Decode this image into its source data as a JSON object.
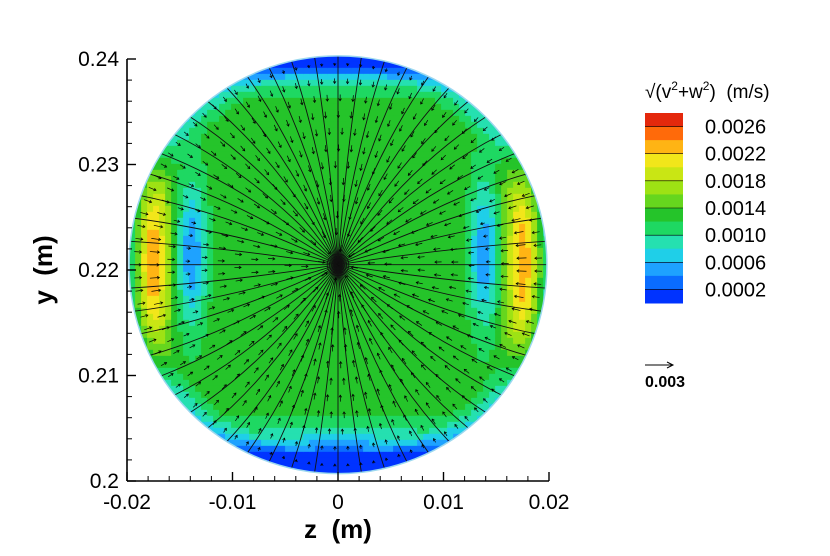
{
  "chart_data": {
    "type": "contour",
    "title": "",
    "xlabel": "z  (m)",
    "ylabel": "y  (m)",
    "xlim": [
      -0.02,
      0.02
    ],
    "ylim": [
      0.2,
      0.24
    ],
    "x_ticks": [
      "-0.02",
      "-0.01",
      "0",
      "0.01",
      "0.02"
    ],
    "y_ticks": [
      "0.2",
      "0.21",
      "0.22",
      "0.23",
      "0.24"
    ],
    "x_tick_values": [
      -0.02,
      -0.01,
      0,
      0.01,
      0.02
    ],
    "y_tick_values": [
      0.2,
      0.21,
      0.22,
      0.23,
      0.24
    ],
    "domain": {
      "shape": "circle",
      "center_z": 0.0,
      "center_y": 0.2205,
      "radius": 0.0198
    },
    "vortex_center": {
      "z": 0.0,
      "y": 0.2205
    },
    "colorbar": {
      "title_prefix": "√(v",
      "title_sup1": "2",
      "title_mid": "+w",
      "title_sup2": "2",
      "title_suffix": ")  (m/s)",
      "levels": [
        0.0002,
        0.0004,
        0.0006,
        0.0008,
        0.001,
        0.0012,
        0.0014,
        0.0016,
        0.0018,
        0.002,
        0.0022,
        0.0024,
        0.0026,
        0.0028
      ],
      "colors": [
        "#0033ff",
        "#0a6cff",
        "#1ea2ff",
        "#1fcfe8",
        "#25e0b0",
        "#1ed862",
        "#25c42a",
        "#66d61e",
        "#9ee214",
        "#c9e614",
        "#f2e61a",
        "#ffb414",
        "#ff6a0a",
        "#e4280c"
      ],
      "tick_labels": [
        "0.0026",
        "0.0022",
        "0.0018",
        "0.0014",
        "0.0010",
        "0.0006",
        "0.0002"
      ]
    },
    "field_features": {
      "peak_speed": 0.0027,
      "peak_locations": [
        {
          "z": -0.0175,
          "y": 0.221
        },
        {
          "z": 0.0175,
          "y": 0.221
        }
      ],
      "low_speed_arcs": [
        {
          "z": -0.014,
          "y": 0.2215,
          "speed": 0.0007
        },
        {
          "z": 0.014,
          "y": 0.2215,
          "speed": 0.0007
        }
      ],
      "low_speed_bottom": {
        "z": 0.0,
        "y": 0.202,
        "speed": 0.0003
      },
      "low_speed_top": {
        "z": 0.0,
        "y": 0.239,
        "speed": 0.0004
      },
      "core_speed": 0.0016
    },
    "reference_vector": {
      "label": "0.003",
      "value": 0.003
    }
  }
}
